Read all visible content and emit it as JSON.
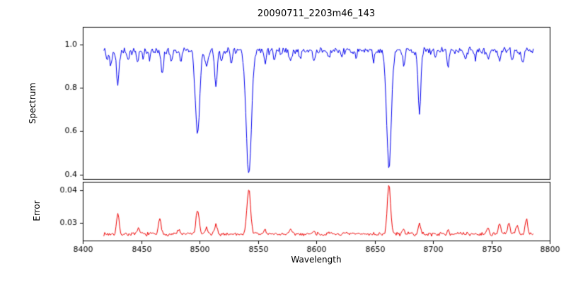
{
  "chart_data": {
    "type": "line",
    "title": "20090711_2203m46_143",
    "xlabel": "Wavelength",
    "xlim": [
      8400,
      8800
    ],
    "xticks": [
      8400,
      8450,
      8500,
      8550,
      8600,
      8650,
      8700,
      8750,
      8800
    ],
    "xtick_labels": [
      "8400",
      "8450",
      "8500",
      "8550",
      "8600",
      "8650",
      "8700",
      "8750",
      "8800"
    ],
    "x_range_data": [
      8418,
      8786
    ],
    "x_step": 0.8,
    "grid": false,
    "legend": "none",
    "panels": [
      {
        "name": "spectrum",
        "ylabel": "Spectrum",
        "color": "#0000ee",
        "ylim": [
          0.38,
          1.08
        ],
        "yticks": [
          0.4,
          0.6,
          0.8,
          1.0
        ],
        "ytick_labels": [
          "0.4",
          "0.6",
          "0.8",
          "1.0"
        ],
        "model": {
          "seed": 42,
          "baseline": 0.97,
          "noise": 0.022,
          "sign": -1,
          "clamp_min": 0.385,
          "clamp_max": 1.04,
          "features": [
            [
              8421,
              0.05,
              1.0
            ],
            [
              8424,
              0.07,
              1.2
            ],
            [
              8430,
              0.16,
              1.4
            ],
            [
              8439,
              0.05,
              1.1
            ],
            [
              8447,
              0.06,
              1.2
            ],
            [
              8452,
              0.04,
              1.0
            ],
            [
              8457,
              0.04,
              1.0
            ],
            [
              8468,
              0.11,
              1.4
            ],
            [
              8476,
              0.05,
              1.1
            ],
            [
              8484,
              0.04,
              1.0
            ],
            [
              8498.3,
              0.395,
              2.6
            ],
            [
              8506,
              0.09,
              1.3
            ],
            [
              8514,
              0.16,
              1.5
            ],
            [
              8519,
              0.05,
              1.0
            ],
            [
              8527,
              0.05,
              1.1
            ],
            [
              8542.2,
              0.575,
              3.2
            ],
            [
              8556,
              0.05,
              1.1
            ],
            [
              8564,
              0.04,
              1.0
            ],
            [
              8578,
              0.06,
              1.2
            ],
            [
              8586,
              0.04,
              1.0
            ],
            [
              8598,
              0.05,
              1.1
            ],
            [
              8611,
              0.04,
              1.0
            ],
            [
              8622,
              0.05,
              1.1
            ],
            [
              8634,
              0.04,
              1.0
            ],
            [
              8649,
              0.04,
              1.0
            ],
            [
              8662.3,
              0.545,
              2.8
            ],
            [
              8675,
              0.07,
              1.2
            ],
            [
              8688.4,
              0.29,
              1.6
            ],
            [
              8702,
              0.04,
              1.0
            ],
            [
              8713,
              0.06,
              1.2
            ],
            [
              8728,
              0.04,
              1.0
            ],
            [
              8736,
              0.04,
              1.0
            ],
            [
              8747,
              0.05,
              1.1
            ],
            [
              8757,
              0.05,
              1.1
            ],
            [
              8768,
              0.05,
              1.2
            ],
            [
              8777,
              0.06,
              1.2
            ]
          ]
        }
      },
      {
        "name": "error",
        "ylabel": "Error",
        "color": "#ee0000",
        "ylim": [
          0.0245,
          0.0425
        ],
        "yticks": [
          0.03,
          0.04
        ],
        "ytick_labels": [
          "0.03",
          "0.04"
        ],
        "model": {
          "seed": 7,
          "baseline": 0.0265,
          "noise": 0.0007,
          "sign": 1,
          "clamp_min": 0.0248,
          "clamp_max": 0.0422,
          "features": [
            [
              8430,
              0.0062,
              1.5
            ],
            [
              8448,
              0.0018,
              1.2
            ],
            [
              8466,
              0.0045,
              1.5
            ],
            [
              8482,
              0.0015,
              1.2
            ],
            [
              8498.3,
              0.0075,
              1.8
            ],
            [
              8506,
              0.002,
              1.3
            ],
            [
              8514,
              0.0028,
              1.4
            ],
            [
              8542.2,
              0.0138,
              2.2
            ],
            [
              8556,
              0.0015,
              1.2
            ],
            [
              8578,
              0.0014,
              1.2
            ],
            [
              8598,
              0.0012,
              1.2
            ],
            [
              8662.3,
              0.015,
              2.0
            ],
            [
              8675,
              0.0018,
              1.2
            ],
            [
              8688.4,
              0.0032,
              1.4
            ],
            [
              8713,
              0.0015,
              1.2
            ],
            [
              8747,
              0.002,
              1.3
            ],
            [
              8757,
              0.003,
              1.4
            ],
            [
              8765,
              0.0035,
              1.4
            ],
            [
              8772,
              0.0028,
              1.3
            ],
            [
              8780,
              0.0048,
              1.5
            ]
          ]
        }
      }
    ]
  }
}
